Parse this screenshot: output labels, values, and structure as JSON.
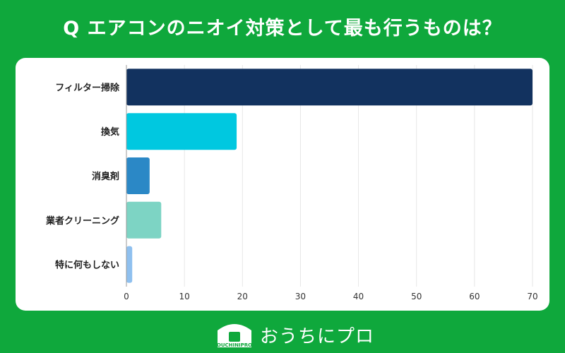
{
  "header": {
    "title": "Q エアコンのニオイ対策として最も行うものは？"
  },
  "chart_data": {
    "type": "bar",
    "orientation": "horizontal",
    "categories": [
      "フィルター掃除",
      "換気",
      "消臭剤",
      "業者クリーニング",
      "特に何もしない"
    ],
    "values": [
      70,
      19,
      4,
      6,
      1
    ],
    "colors": [
      "#12325f",
      "#00c8e0",
      "#2b88c6",
      "#7dd4c4",
      "#8fc0ef"
    ],
    "xlim": [
      0,
      70
    ],
    "xticks": [
      0,
      10,
      20,
      30,
      40,
      50,
      60,
      70
    ],
    "grid": true,
    "legend": "none"
  },
  "footer": {
    "brand": "おうちにプロ",
    "logo_small_text": "OUCHINIPRO"
  }
}
